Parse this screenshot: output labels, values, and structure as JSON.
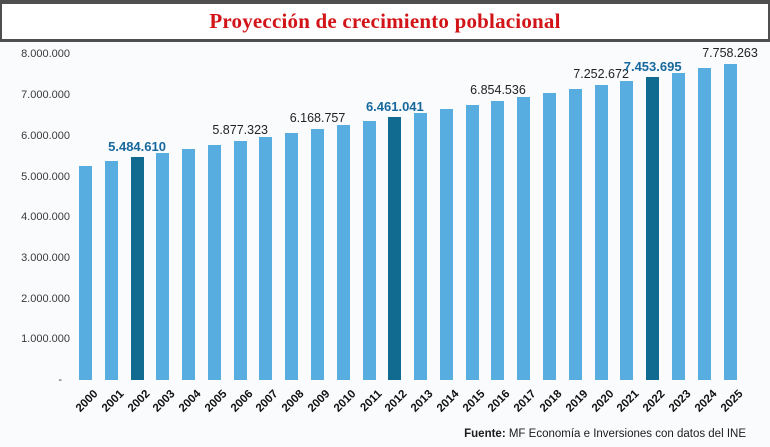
{
  "title": "Proyección de crecimiento poblacional",
  "source": {
    "prefix": "Fuente:",
    "text": " MF Economía e Inversiones con datos del INE"
  },
  "chart_data": {
    "type": "bar",
    "title": "Proyección de crecimiento poblacional",
    "categories": [
      "2000",
      "2001",
      "2002",
      "2003",
      "2004",
      "2005",
      "2006",
      "2007",
      "2008",
      "2009",
      "2010",
      "2011",
      "2012",
      "2013",
      "2014",
      "2015",
      "2016",
      "2017",
      "2018",
      "2019",
      "2020",
      "2021",
      "2022",
      "2023",
      "2024",
      "2025"
    ],
    "values": [
      5270000,
      5377000,
      5484610,
      5583000,
      5681000,
      5779000,
      5877323,
      5974000,
      6072000,
      6168757,
      6266000,
      6364000,
      6461041,
      6559000,
      6658000,
      6756000,
      6854536,
      6954000,
      7054000,
      7153000,
      7252672,
      7353000,
      7453695,
      7555000,
      7657000,
      7758263
    ],
    "data_labels": {
      "2002": "5.484.610",
      "2006": "5.877.323",
      "2009": "6.168.757",
      "2012": "6.461.041",
      "2016": "6.854.536",
      "2020": "7.252.672",
      "2022": "7.453.695",
      "2025": "7.758.263"
    },
    "highlighted_categories": [
      "2002",
      "2012",
      "2022"
    ],
    "y_ticks": [
      {
        "label": "8.000.000",
        "value": 8000000
      },
      {
        "label": "7.000.000",
        "value": 7000000
      },
      {
        "label": "6.000.000",
        "value": 6000000
      },
      {
        "label": "5.000.000",
        "value": 5000000
      },
      {
        "label": "4.000.000",
        "value": 4000000
      },
      {
        "label": "3.000.000",
        "value": 3000000
      },
      {
        "label": "2.000.000",
        "value": 2000000
      },
      {
        "label": "1.000.000",
        "value": 1000000
      },
      {
        "label": "-",
        "value": 0
      }
    ],
    "ylim": [
      0,
      8000000
    ],
    "grid": false,
    "legend": false,
    "xlabel": "",
    "ylabel": "",
    "colors": {
      "bar": "#57ace0",
      "bar_highlight": "#116b91",
      "data_label": "#222222",
      "data_label_highlight": "#17699d",
      "title": "#d21317",
      "axis_text": "#3a3a3a",
      "frame_border": "#4f4f4f"
    }
  }
}
